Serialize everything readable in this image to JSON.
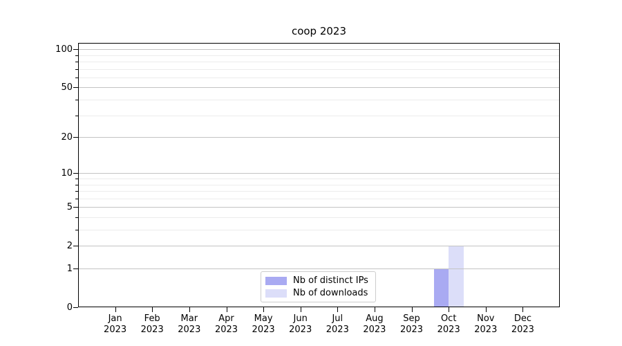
{
  "chart_data": {
    "type": "bar",
    "title": "coop 2023",
    "categories": [
      "Jan",
      "Feb",
      "Mar",
      "Apr",
      "May",
      "Jun",
      "Jul",
      "Aug",
      "Sep",
      "Oct",
      "Nov",
      "Dec"
    ],
    "category_year": "2023",
    "series": [
      {
        "name": "Nb of distinct IPs",
        "color": "#a9aaf2",
        "values": [
          0,
          0,
          0,
          0,
          0,
          0,
          0,
          0,
          0,
          1,
          0,
          0
        ]
      },
      {
        "name": "Nb of downloads",
        "color": "#dcdef9",
        "values": [
          0,
          0,
          0,
          0,
          0,
          0,
          0,
          0,
          0,
          2,
          0,
          0
        ]
      }
    ],
    "xlabel": "",
    "ylabel": "",
    "yscale": "log1p",
    "ylim": [
      0,
      112
    ],
    "yticks_major": [
      0,
      1,
      2,
      5,
      10,
      20,
      50,
      100
    ],
    "yticks_minor": [
      3,
      4,
      6,
      7,
      8,
      9,
      30,
      40,
      60,
      70,
      80,
      90
    ],
    "grid": true,
    "legend_position": "lower center",
    "colors": {
      "grid_major": "#c3c3c3",
      "grid_minor": "#ececec",
      "axis": "#000000",
      "background": "#ffffff"
    }
  }
}
